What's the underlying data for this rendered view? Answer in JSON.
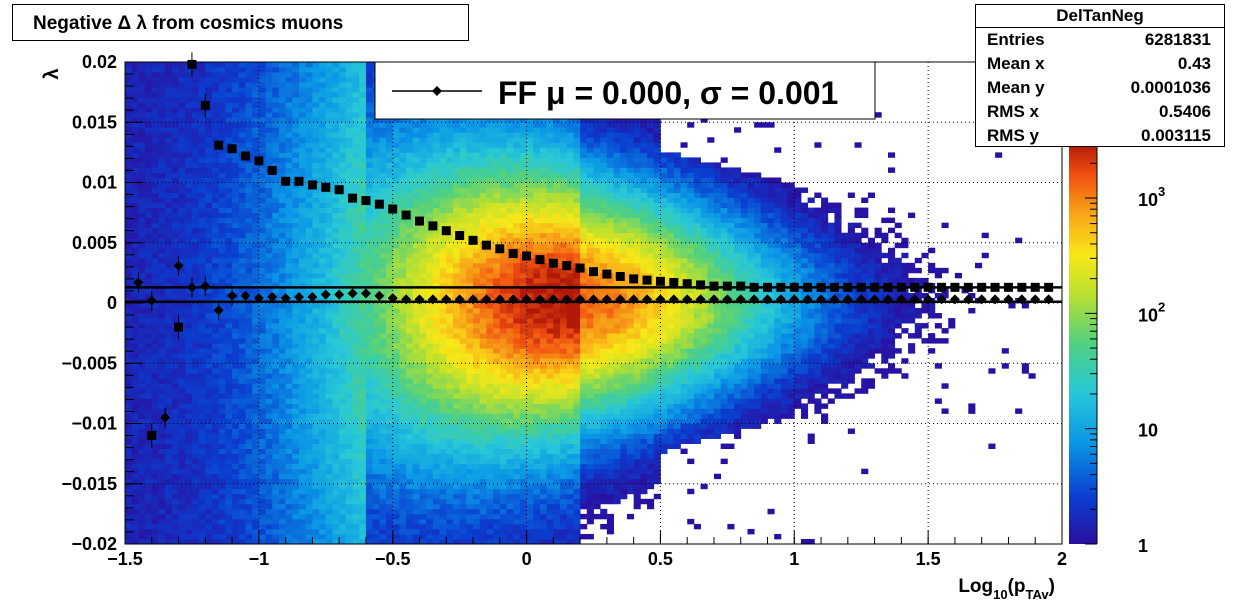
{
  "title": "Negative Δ λ from cosmics muons",
  "stats": {
    "name": "DelTanNeg",
    "rows": [
      {
        "label": "Entries",
        "value": "6281831"
      },
      {
        "label": "Mean x",
        "value": "0.43"
      },
      {
        "label": "Mean y",
        "value": "0.0001036"
      },
      {
        "label": "RMS x",
        "value": "0.5406"
      },
      {
        "label": "RMS y",
        "value": "0.003115"
      }
    ]
  },
  "legend": {
    "label": "FF μ =  0.000, σ =   0.001"
  },
  "colors": {
    "profile": "#000000",
    "grid": "#000000"
  },
  "chart_data": {
    "type": "heatmap",
    "title": "Negative Δ λ from cosmics muons",
    "xlabel": "Log10(pTAv)",
    "ylabel": "λ",
    "xlim": [
      -1.5,
      2
    ],
    "ylim": [
      -0.02,
      0.02
    ],
    "z_scale": "log",
    "zlim": [
      1,
      3000
    ],
    "grid": true,
    "x_ticks": [
      "−1.5",
      "−1",
      "−0.5",
      "0",
      "0.5",
      "1",
      "1.5",
      "2"
    ],
    "x_tick_values": [
      -1.5,
      -1,
      -0.5,
      0,
      0.5,
      1,
      1.5,
      2
    ],
    "y_ticks": [
      "−0.02",
      "−0.015",
      "−0.01",
      "−0.005",
      "0",
      "0.005",
      "0.01",
      "0.015",
      "0.02"
    ],
    "y_tick_values": [
      -0.02,
      -0.015,
      -0.01,
      -0.005,
      0,
      0.005,
      0.01,
      0.015,
      0.02
    ],
    "z_ticks": [
      "1",
      "10",
      "10^2",
      "10^3"
    ],
    "z_tick_values": [
      1,
      10,
      100,
      1000
    ],
    "series": [
      {
        "name": "FF",
        "marker": "diamond",
        "x": [
          -1.45,
          -1.4,
          -1.35,
          -1.3,
          -1.25,
          -1.2,
          -1.15,
          -1.1,
          -1.05,
          -1.0,
          -0.95,
          -0.9,
          -0.85,
          -0.8,
          -0.75,
          -0.7,
          -0.65,
          -0.6,
          -0.55,
          -0.5,
          -0.45,
          -0.4,
          -0.35,
          -0.3,
          -0.25,
          -0.2,
          -0.15,
          -0.1,
          -0.05,
          0.0,
          0.05,
          0.1,
          0.15,
          0.2,
          0.25,
          0.3,
          0.35,
          0.4,
          0.45,
          0.5,
          0.55,
          0.6,
          0.65,
          0.7,
          0.75,
          0.8,
          0.85,
          0.9,
          0.95,
          1.0,
          1.05,
          1.1,
          1.15,
          1.2,
          1.25,
          1.3,
          1.35,
          1.4,
          1.45,
          1.5,
          1.55,
          1.6,
          1.65,
          1.7,
          1.75,
          1.8,
          1.85,
          1.9,
          1.95
        ],
        "y": [
          0.0017,
          0.0002,
          -0.0095,
          0.0031,
          0.0013,
          0.0014,
          -0.0006,
          0.0006,
          0.0006,
          0.0004,
          0.0005,
          0.0004,
          0.0005,
          0.0005,
          0.0007,
          0.0007,
          0.0008,
          0.0008,
          0.0006,
          0.0004,
          0.0003,
          0.0003,
          0.0003,
          0.0003,
          0.0003,
          0.0003,
          0.0003,
          0.0003,
          0.0003,
          0.0003,
          0.0003,
          0.0003,
          0.0003,
          0.0003,
          0.0003,
          0.0003,
          0.0003,
          0.0003,
          0.0003,
          0.0003,
          0.0003,
          0.0003,
          0.0003,
          0.0003,
          0.0003,
          0.0003,
          0.0003,
          0.0003,
          0.0003,
          0.0003,
          0.0003,
          0.0003,
          0.0003,
          0.0003,
          0.0003,
          0.0003,
          0.0003,
          0.0003,
          0.0003,
          0.0003,
          0.0003,
          0.0003,
          0.0003,
          0.0003,
          0.0003,
          0.0003,
          0.0003,
          0.0003,
          0.0003
        ]
      },
      {
        "name": "",
        "marker": "square",
        "x": [
          -1.4,
          -1.3,
          -1.25,
          -1.2,
          -1.15,
          -1.1,
          -1.05,
          -1.0,
          -0.95,
          -0.9,
          -0.85,
          -0.8,
          -0.75,
          -0.7,
          -0.65,
          -0.6,
          -0.55,
          -0.5,
          -0.45,
          -0.4,
          -0.35,
          -0.3,
          -0.25,
          -0.2,
          -0.15,
          -0.1,
          -0.05,
          0.0,
          0.05,
          0.1,
          0.15,
          0.2,
          0.25,
          0.3,
          0.35,
          0.4,
          0.45,
          0.5,
          0.55,
          0.6,
          0.65,
          0.7,
          0.75,
          0.8,
          0.85,
          0.9,
          0.95,
          1.0,
          1.05,
          1.1,
          1.15,
          1.2,
          1.25,
          1.3,
          1.35,
          1.4,
          1.45,
          1.5,
          1.55,
          1.6,
          1.65,
          1.7,
          1.75,
          1.8,
          1.85,
          1.9,
          1.95
        ],
        "y": [
          -0.011,
          -0.002,
          0.0198,
          0.0164,
          0.0131,
          0.0128,
          0.0122,
          0.0118,
          0.011,
          0.0101,
          0.0101,
          0.0098,
          0.0096,
          0.0094,
          0.0087,
          0.0085,
          0.0082,
          0.0078,
          0.0073,
          0.0068,
          0.0064,
          0.006,
          0.0056,
          0.0052,
          0.0048,
          0.0045,
          0.0041,
          0.0039,
          0.0036,
          0.0033,
          0.0031,
          0.0029,
          0.0026,
          0.0024,
          0.0022,
          0.002,
          0.0019,
          0.0018,
          0.0017,
          0.0016,
          0.0015,
          0.0014,
          0.0014,
          0.0014,
          0.0013,
          0.0013,
          0.0013,
          0.0013,
          0.0013,
          0.0013,
          0.0013,
          0.0013,
          0.0013,
          0.0013,
          0.0013,
          0.0013,
          0.0013,
          0.0013,
          0.0013,
          0.0013,
          0.0013,
          0.0013,
          0.0013,
          0.0013,
          0.0013,
          0.0013,
          0.0013
        ]
      }
    ],
    "fit_lines": [
      0.0001,
      0.0013
    ]
  }
}
